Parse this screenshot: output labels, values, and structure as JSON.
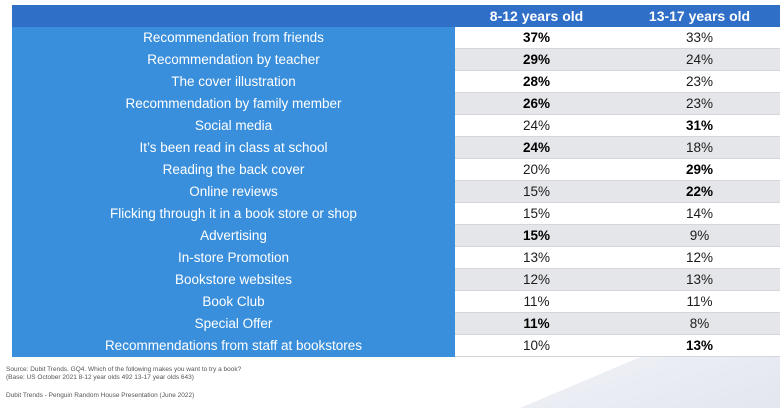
{
  "chart_data": {
    "type": "table",
    "columns": [
      "8-12 years old",
      "13-17 years old"
    ],
    "rows": [
      {
        "label": "Recommendation from friends",
        "values": [
          "37%",
          "33%"
        ],
        "bold": [
          true,
          false
        ]
      },
      {
        "label": "Recommendation by teacher",
        "values": [
          "29%",
          "24%"
        ],
        "bold": [
          true,
          false
        ]
      },
      {
        "label": "The cover illustration",
        "values": [
          "28%",
          "23%"
        ],
        "bold": [
          true,
          false
        ]
      },
      {
        "label": "Recommendation by family member",
        "values": [
          "26%",
          "23%"
        ],
        "bold": [
          true,
          false
        ]
      },
      {
        "label": "Social media",
        "values": [
          "24%",
          "31%"
        ],
        "bold": [
          false,
          true
        ]
      },
      {
        "label": "It’s been read in class at school",
        "values": [
          "24%",
          "18%"
        ],
        "bold": [
          true,
          false
        ]
      },
      {
        "label": "Reading the back cover",
        "values": [
          "20%",
          "29%"
        ],
        "bold": [
          false,
          true
        ]
      },
      {
        "label": "Online reviews",
        "values": [
          "15%",
          "22%"
        ],
        "bold": [
          false,
          true
        ]
      },
      {
        "label": "Flicking through it in a book store or shop",
        "values": [
          "15%",
          "14%"
        ],
        "bold": [
          false,
          false
        ]
      },
      {
        "label": "Advertising",
        "values": [
          "15%",
          "9%"
        ],
        "bold": [
          true,
          false
        ]
      },
      {
        "label": "In-store Promotion",
        "values": [
          "13%",
          "12%"
        ],
        "bold": [
          false,
          false
        ]
      },
      {
        "label": "Bookstore websites",
        "values": [
          "12%",
          "13%"
        ],
        "bold": [
          false,
          false
        ]
      },
      {
        "label": "Book Club",
        "values": [
          "11%",
          "11%"
        ],
        "bold": [
          false,
          false
        ]
      },
      {
        "label": "Special Offer",
        "values": [
          "11%",
          "8%"
        ],
        "bold": [
          true,
          false
        ]
      },
      {
        "label": "Recommendations from staff at bookstores",
        "values": [
          "10%",
          "13%"
        ],
        "bold": [
          false,
          true
        ]
      }
    ]
  },
  "footer": {
    "source": "Source: Dubit Trends. GQ4. Which of the following makes you want to try a book?",
    "base": "(Base: US October 2021 8-12 year olds 492 13-17 year olds 643)",
    "credit": "Dubit Trends - Penguin Random House Presentation (June 2022)"
  },
  "colors": {
    "header_bg": "#2f6fc8",
    "label_bg": "#3a8fdc",
    "stripe": "#e5e6ea"
  }
}
